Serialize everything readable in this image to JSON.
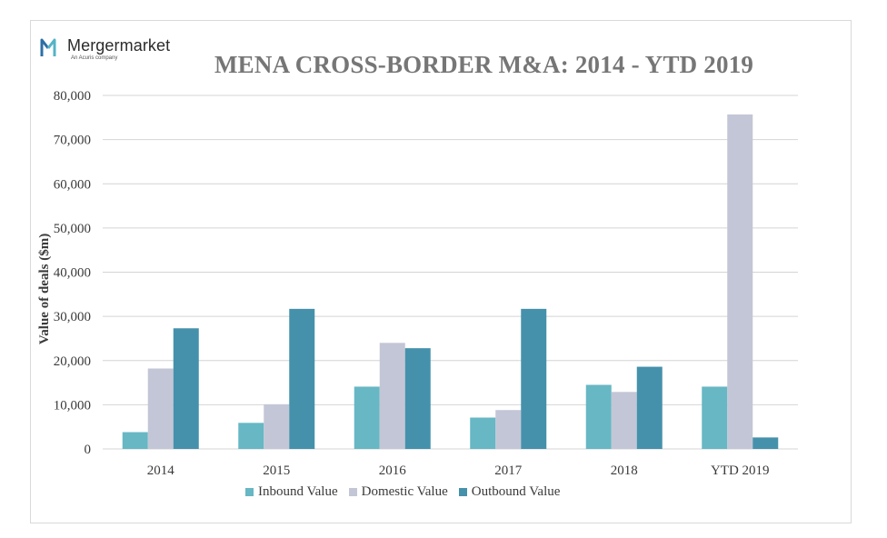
{
  "logo": {
    "name": "Mergermarket",
    "tagline": "An Acuris company"
  },
  "colors": {
    "inbound": "#67b7c4",
    "domestic": "#c3c6d6",
    "outbound": "#4591ab",
    "grid": "#d4d4d4",
    "logo_blue": "#2c6fa6",
    "logo_teal": "#55b3c6"
  },
  "chart_data": {
    "type": "bar",
    "title": "MENA CROSS-BORDER M&A: 2014 - YTD 2019",
    "xlabel": "",
    "ylabel": "Value of deals ($m)",
    "ylim": [
      0,
      80000
    ],
    "yticks": [
      0,
      10000,
      20000,
      30000,
      40000,
      50000,
      60000,
      70000,
      80000
    ],
    "ytick_labels": [
      "0",
      "10,000",
      "20,000",
      "30,000",
      "40,000",
      "50,000",
      "60,000",
      "70,000",
      "80,000"
    ],
    "categories": [
      "2014",
      "2015",
      "2016",
      "2017",
      "2018",
      "YTD 2019"
    ],
    "series": [
      {
        "name": "Inbound Value",
        "color_key": "inbound",
        "values": [
          3800,
          5900,
          14100,
          7100,
          14500,
          14100
        ]
      },
      {
        "name": "Domestic Value",
        "color_key": "domestic",
        "values": [
          18200,
          10100,
          24000,
          8800,
          12900,
          75700
        ]
      },
      {
        "name": "Outbound Value",
        "color_key": "outbound",
        "values": [
          27300,
          31700,
          22800,
          31700,
          18600,
          2600
        ]
      }
    ],
    "grid": true,
    "legend": "bottom"
  }
}
